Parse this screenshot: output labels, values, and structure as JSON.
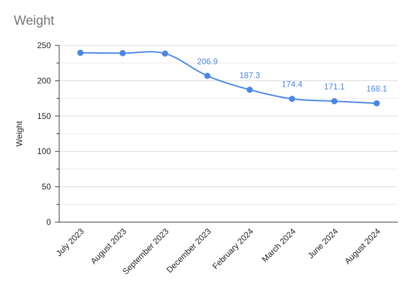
{
  "chart_data": {
    "type": "line",
    "title": "Weight",
    "xlabel": "",
    "ylabel": "Weight",
    "categories": [
      "July 2023",
      "August 2023",
      "September 2023",
      "December 2023",
      "February 2024",
      "March 2024",
      "June 2024",
      "August 2024"
    ],
    "series": [
      {
        "values": [
          239.5,
          239.0,
          238.5,
          206.9,
          187.3,
          174.4,
          171.1,
          168.1
        ],
        "data_labels": [
          "",
          "",
          "",
          "206.9",
          "187.3",
          "174.4",
          "171.1",
          "168.1"
        ]
      }
    ],
    "ylim": [
      0,
      250
    ],
    "yticks": [
      "0",
      "50",
      "100",
      "150",
      "200",
      "250"
    ],
    "grid": true,
    "legend": "none",
    "colors": {
      "line": "#4a86e8",
      "label": "#4a86e8",
      "grid": "#d9d9d9",
      "minor_grid": "#ebebeb",
      "axis": "#333333"
    }
  }
}
